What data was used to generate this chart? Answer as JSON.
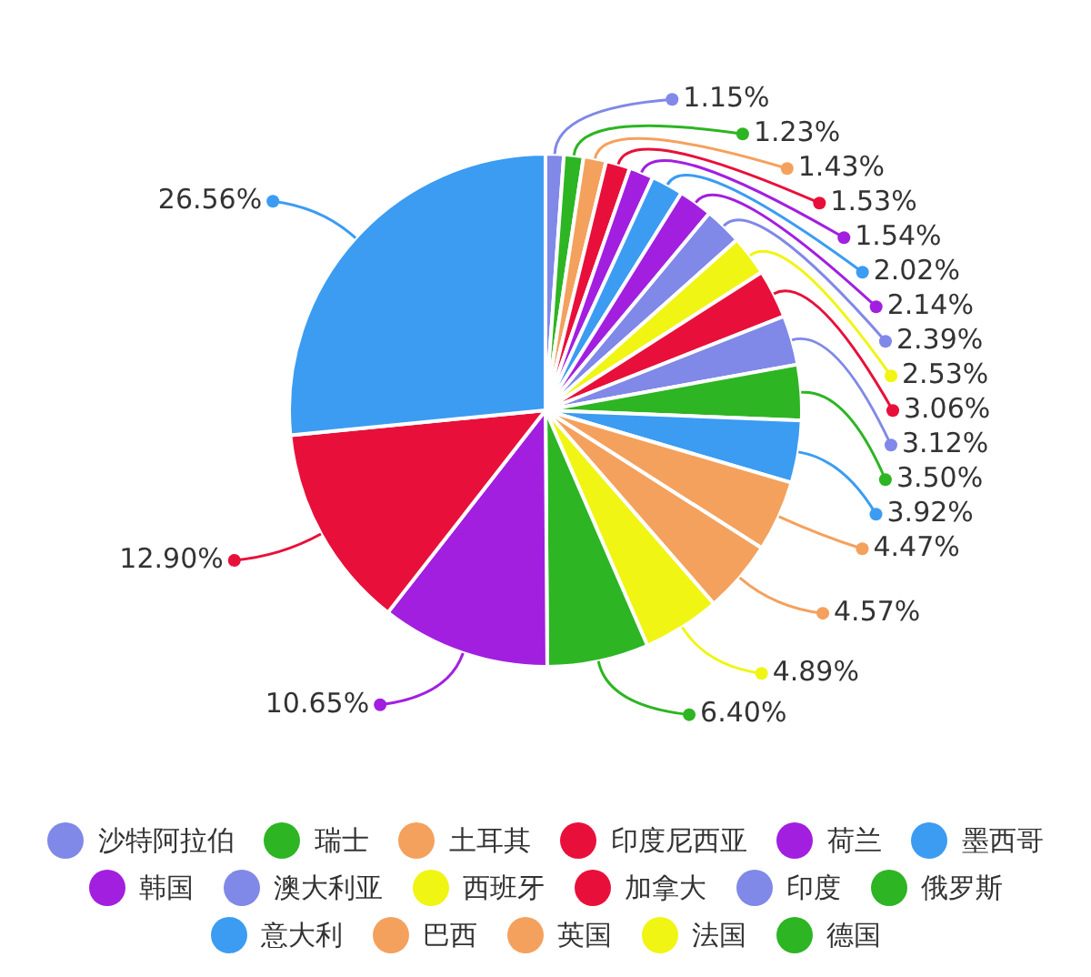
{
  "chart_data": {
    "type": "pie",
    "legend": "bottom",
    "categories": [
      "沙特阿拉伯",
      "瑞士",
      "土耳其",
      "印度尼西亚",
      "荷兰",
      "墨西哥",
      "韩国",
      "澳大利亚",
      "西班牙",
      "加拿大",
      "印度",
      "俄罗斯",
      "意大利",
      "巴西",
      "英国",
      "法国",
      "德国",
      null,
      null,
      null
    ],
    "values": [
      1.15,
      1.23,
      1.43,
      1.53,
      1.54,
      2.02,
      2.14,
      2.39,
      2.53,
      3.06,
      3.12,
      3.5,
      3.92,
      4.47,
      4.57,
      4.89,
      6.4,
      10.65,
      12.9,
      26.56
    ],
    "value_labels": [
      "1.15%",
      "1.23%",
      "1.43%",
      "1.53%",
      "1.54%",
      "2.02%",
      "2.14%",
      "2.39%",
      "2.53%",
      "3.06%",
      "3.12%",
      "3.50%",
      "3.92%",
      "4.47%",
      "4.57%",
      "4.89%",
      "6.40%",
      "10.65%",
      "12.90%",
      "26.56%"
    ],
    "colors": [
      "#8088e8",
      "#2db523",
      "#f4a15d",
      "#e8103a",
      "#a21fe0",
      "#3b9cf2",
      "#a21fe0",
      "#8088e8",
      "#f0f514",
      "#e8103a",
      "#8088e8",
      "#2db523",
      "#3b9cf2",
      "#f4a15d",
      "#f4a15d",
      "#f0f514",
      "#2db523",
      "#a21fe0",
      "#e8103a",
      "#3b9cf2"
    ]
  }
}
